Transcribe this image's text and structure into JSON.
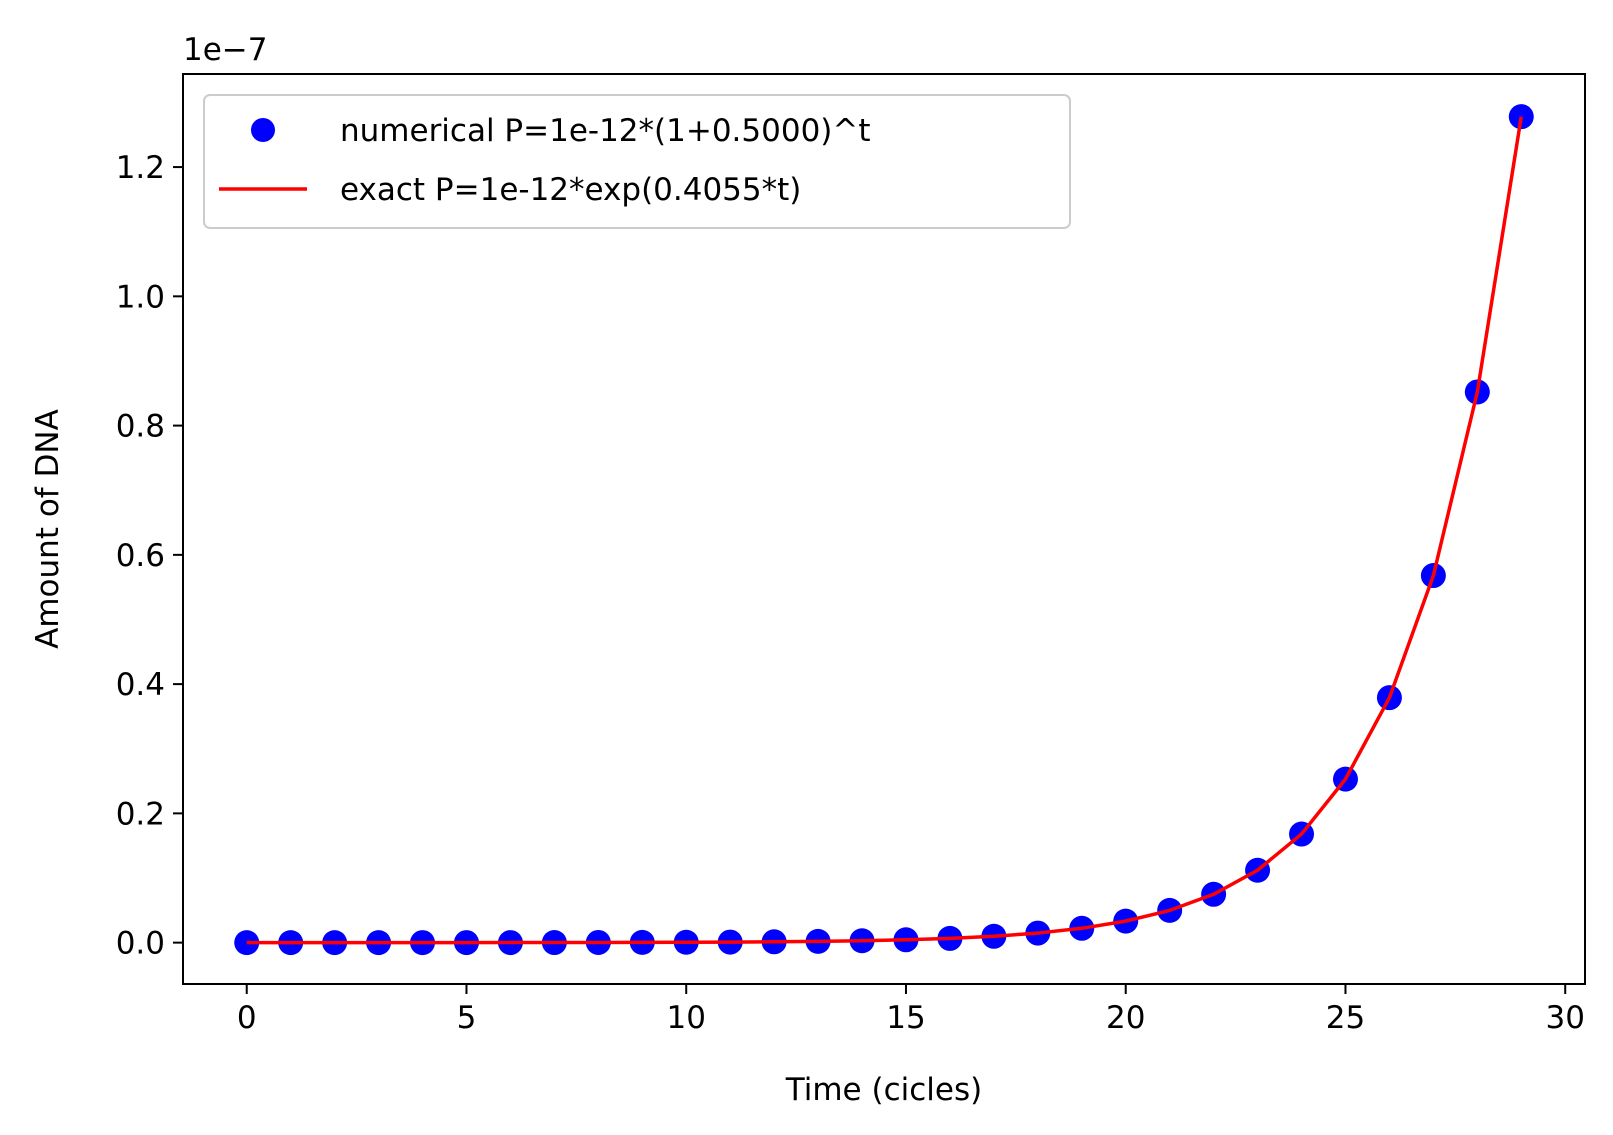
{
  "chart_data": {
    "type": "line",
    "title": "",
    "xlabel": "Time (cicles)",
    "ylabel": "Amount of DNA",
    "y_offset_label": "1e−7",
    "xlim": [
      -1.45,
      30.45
    ],
    "ylim": [
      -0.064,
      1.344
    ],
    "x_ticks": [
      0,
      5,
      10,
      15,
      20,
      25,
      30
    ],
    "x_tick_labels": [
      "0",
      "5",
      "10",
      "15",
      "20",
      "25",
      "30"
    ],
    "y_ticks": [
      0.0,
      0.2,
      0.4,
      0.6,
      0.8,
      1.0,
      1.2
    ],
    "y_tick_labels": [
      "0.0",
      "0.2",
      "0.4",
      "0.6",
      "0.8",
      "1.0",
      "1.2"
    ],
    "grid": false,
    "legend_position": "top-left",
    "series": [
      {
        "name": "numerical P=1e-12*(1+0.5000)^t",
        "style": "markers",
        "color": "#0000ff",
        "x": [
          0,
          1,
          2,
          3,
          4,
          5,
          6,
          7,
          8,
          9,
          10,
          11,
          12,
          13,
          14,
          15,
          16,
          17,
          18,
          19,
          20,
          21,
          22,
          23,
          24,
          25,
          26,
          27,
          28,
          29
        ],
        "y": [
          1e-05,
          1.5e-05,
          2.25e-05,
          3.38e-05,
          5.06e-05,
          7.59e-05,
          0.000114,
          0.000171,
          0.000256,
          0.000384,
          0.000577,
          0.000865,
          0.0013,
          0.00195,
          0.00292,
          0.00438,
          0.00657,
          0.00985,
          0.0148,
          0.0222,
          0.0333,
          0.0499,
          0.0748,
          0.112,
          0.168,
          0.253,
          0.379,
          0.568,
          0.852,
          1.278
        ]
      },
      {
        "name": "exact P=1e-12*exp(0.4055*t)",
        "style": "line",
        "color": "#ff0000",
        "x": [
          0,
          1,
          2,
          3,
          4,
          5,
          6,
          7,
          8,
          9,
          10,
          11,
          12,
          13,
          14,
          15,
          16,
          17,
          18,
          19,
          20,
          21,
          22,
          23,
          24,
          25,
          26,
          27,
          28,
          29
        ],
        "y": [
          1e-05,
          1.5e-05,
          2.25e-05,
          3.38e-05,
          5.06e-05,
          7.59e-05,
          0.000114,
          0.000171,
          0.000256,
          0.000384,
          0.000577,
          0.000865,
          0.0013,
          0.00195,
          0.00292,
          0.00438,
          0.00657,
          0.00985,
          0.0148,
          0.0222,
          0.0333,
          0.0499,
          0.0748,
          0.112,
          0.168,
          0.253,
          0.379,
          0.568,
          0.852,
          1.278
        ]
      }
    ]
  }
}
